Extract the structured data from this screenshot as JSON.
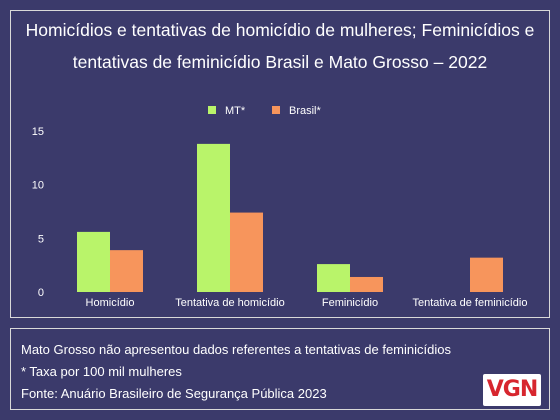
{
  "chart_data": {
    "type": "bar",
    "title_lines": [
      "Homicídios e tentativas de homicídio de mulheres; Feminicídios e",
      "tentativas de feminicídio Brasil e Mato Grosso – 2022"
    ],
    "categories": [
      "Homicídio",
      "Tentativa de homicídio",
      "Feminicídio",
      "Tentativa de feminicídio"
    ],
    "series": [
      {
        "name": "MT*",
        "color": "#b9f46a",
        "values": [
          5.6,
          13.8,
          2.6,
          null
        ]
      },
      {
        "name": "Brasil*",
        "color": "#f7955c",
        "values": [
          3.9,
          7.4,
          1.4,
          3.2
        ]
      }
    ],
    "yticks": [
      "0",
      "5",
      "10",
      "15"
    ],
    "ylim": [
      0,
      15
    ],
    "grid": false,
    "legend": "top-center"
  },
  "notes": [
    "Mato Grosso não apresentou dados referentes a tentativas de feminicídios",
    "* Taxa por 100 mil mulheres",
    "Fonte: Anuário Brasileiro de Segurança Pública 2023"
  ],
  "logo": {
    "text": "VGN",
    "color": "#d7262e"
  }
}
